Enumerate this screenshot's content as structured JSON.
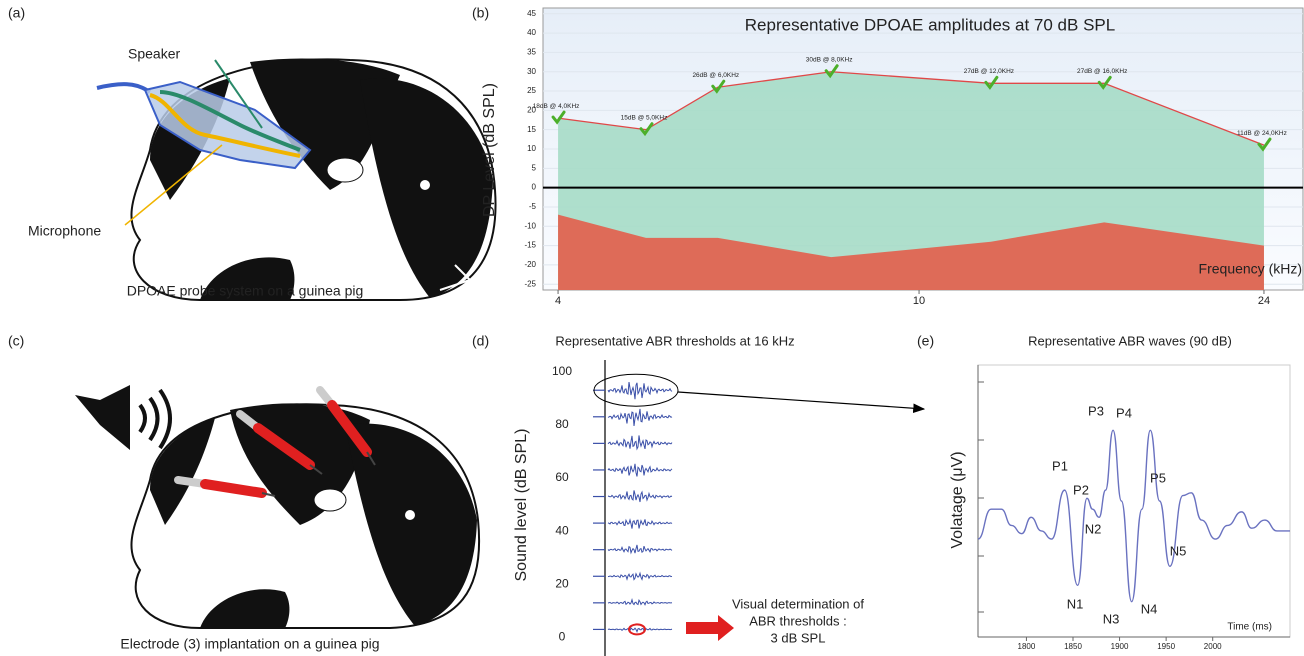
{
  "panel_a": {
    "label": "(a)",
    "speaker": "Speaker",
    "microphone": "Microphone",
    "caption": "DPOAE probe system on a guinea pig"
  },
  "panel_c": {
    "label": "(c)",
    "caption": "Electrode (3) implantation on a guinea pig"
  },
  "chart_data": [
    {
      "type": "area",
      "panel_label": "(b)",
      "title": "Representative DPOAE amplitudes at 70 dB SPL",
      "x_label": "Frequency (kHz)",
      "y_label": "DP Level (dB SPL)",
      "x": [
        4,
        5,
        6,
        8,
        12,
        16,
        24
      ],
      "xscale": "log",
      "xlim": [
        3.85,
        26.5
      ],
      "xticks": [
        4,
        10,
        24
      ],
      "ylim": [
        -26.5,
        46.5
      ],
      "yticks": [
        -25,
        -20,
        -15,
        -10,
        -5,
        0,
        5,
        10,
        15,
        20,
        25,
        30,
        35,
        40,
        45
      ],
      "grid": true,
      "series": [
        {
          "color": "#e04848",
          "fill": "#a6dcc6",
          "values": [
            18,
            15,
            26,
            30,
            27,
            27,
            11
          ],
          "value_labels": [
            "18dB @ 4,0KHz",
            "15dB @ 5,0KHz",
            "26dB @ 6,0KHz",
            "30dB @ 8,0KHz",
            "27dB @ 12,0KHz",
            "27dB @ 16,0KHz",
            "11dB @ 24,0KHz"
          ]
        },
        {
          "color": "#de6b58",
          "fill": "#de6b58",
          "values": [
            -7,
            -13,
            -13,
            -18,
            -14,
            -9,
            -15
          ]
        }
      ]
    },
    {
      "type": "waveform",
      "panel_label": "(d)",
      "title": "Representative ABR thresholds at 16 kHz",
      "y_label": "Sound level (dB SPL)",
      "values": [
        93,
        83,
        73,
        63,
        53,
        43,
        33,
        23,
        13,
        3
      ],
      "color": "#3a4fa8",
      "ylim": [
        -7,
        107
      ],
      "yticks": [
        0,
        20,
        40,
        60,
        80,
        100
      ],
      "annotation": [
        "Visual determination of",
        "ABR thresholds :",
        "3 dB SPL"
      ]
    },
    {
      "type": "line",
      "panel_label": "(e)",
      "title": "Representative ABR waves (90 dB)",
      "y_label": "Volatage (μV)",
      "x_label": "Time (ms)",
      "x": [
        1748,
        1762,
        1773,
        1784,
        1795,
        1805,
        1816,
        1827,
        1841,
        1855,
        1865,
        1871,
        1878,
        1885,
        1893,
        1902,
        1913,
        1924,
        1933,
        1943,
        1954,
        1968,
        1977,
        1988,
        2003,
        2016,
        2031,
        2042,
        2056,
        2069,
        2083
      ],
      "values": [
        36,
        47,
        47,
        41,
        38,
        44,
        39,
        36,
        54,
        19,
        51,
        47,
        44,
        54,
        76,
        50,
        13,
        47,
        76,
        50,
        26,
        52,
        53,
        43,
        36,
        41,
        46,
        40,
        43,
        39,
        39
      ],
      "color": "#6a72c0",
      "xlim": [
        1748,
        2083
      ],
      "xticks": [
        1800,
        1850,
        1900,
        1950,
        2000
      ],
      "ylim": [
        0,
        100
      ],
      "peak_labels": [
        "P1",
        "P2",
        "P3",
        "P4",
        "P5",
        "N1",
        "N2",
        "N3",
        "N4",
        "N5"
      ]
    }
  ]
}
